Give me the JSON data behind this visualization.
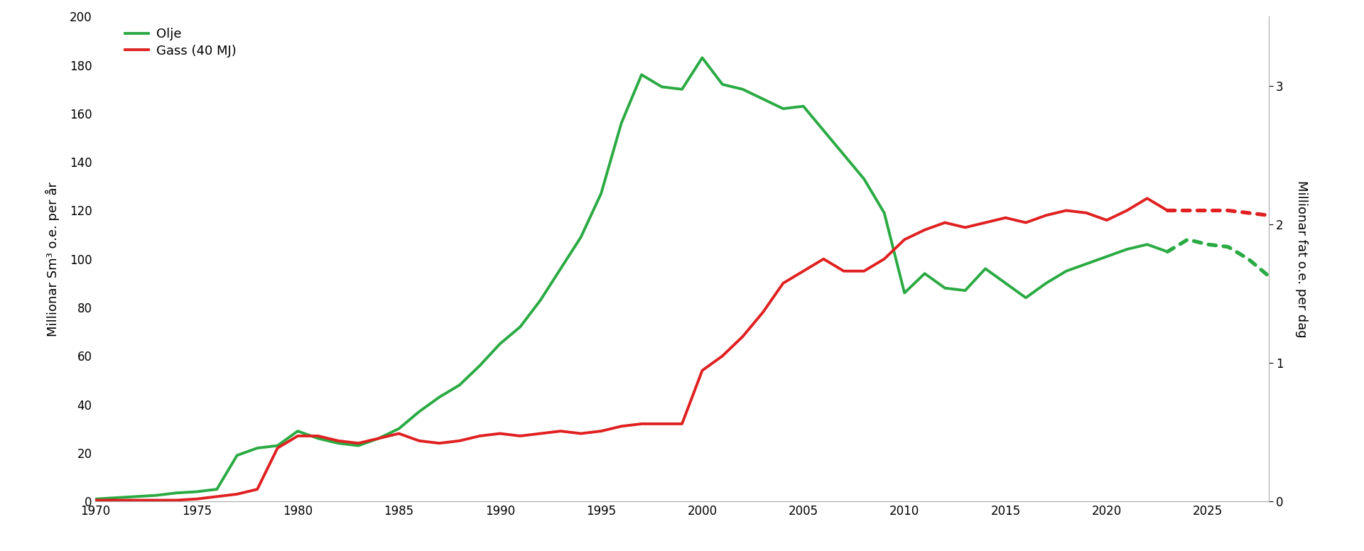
{
  "olje_years": [
    1970,
    1971,
    1972,
    1973,
    1974,
    1975,
    1976,
    1977,
    1978,
    1979,
    1980,
    1981,
    1982,
    1983,
    1984,
    1985,
    1986,
    1987,
    1988,
    1989,
    1990,
    1991,
    1992,
    1993,
    1994,
    1995,
    1996,
    1997,
    1998,
    1999,
    2000,
    2001,
    2002,
    2003,
    2004,
    2005,
    2006,
    2007,
    2008,
    2009,
    2010,
    2011,
    2012,
    2013,
    2014,
    2015,
    2016,
    2017,
    2018,
    2019,
    2020,
    2021,
    2022,
    2023
  ],
  "olje_values": [
    1,
    1.5,
    2,
    2.5,
    3.5,
    4,
    5,
    19,
    22,
    23,
    29,
    26,
    24,
    23,
    26,
    30,
    37,
    43,
    48,
    56,
    65,
    72,
    83,
    96,
    109,
    127,
    156,
    176,
    171,
    170,
    183,
    172,
    170,
    166,
    162,
    163,
    153,
    143,
    133,
    119,
    86,
    94,
    88,
    87,
    96,
    90,
    84,
    90,
    95,
    98,
    101,
    104,
    106,
    103
  ],
  "olje_forecast_years": [
    2023,
    2024,
    2025,
    2026,
    2027,
    2028
  ],
  "olje_forecast_values": [
    103,
    108,
    106,
    105,
    100,
    93
  ],
  "gass_years": [
    1970,
    1971,
    1972,
    1973,
    1974,
    1975,
    1976,
    1977,
    1978,
    1979,
    1980,
    1981,
    1982,
    1983,
    1984,
    1985,
    1986,
    1987,
    1988,
    1989,
    1990,
    1991,
    1992,
    1993,
    1994,
    1995,
    1996,
    1997,
    1998,
    1999,
    2000,
    2001,
    2002,
    2003,
    2004,
    2005,
    2006,
    2007,
    2008,
    2009,
    2010,
    2011,
    2012,
    2013,
    2014,
    2015,
    2016,
    2017,
    2018,
    2019,
    2020,
    2021,
    2022,
    2023
  ],
  "gass_values": [
    0.5,
    0.5,
    0.5,
    0.5,
    0.5,
    1,
    2,
    3,
    5,
    22,
    27,
    27,
    25,
    24,
    26,
    28,
    25,
    24,
    25,
    27,
    28,
    27,
    28,
    29,
    28,
    29,
    31,
    32,
    32,
    32,
    54,
    60,
    68,
    78,
    90,
    95,
    100,
    95,
    95,
    100,
    108,
    112,
    115,
    113,
    115,
    117,
    115,
    118,
    120,
    119,
    116,
    120,
    125,
    120
  ],
  "gass_forecast_years": [
    2023,
    2024,
    2025,
    2026,
    2027,
    2028
  ],
  "gass_forecast_values": [
    120,
    120,
    120,
    120,
    119,
    118
  ],
  "olje_color": "#2aaa42",
  "gass_color": "#e02020",
  "ylabel_left": "Millionar Sm³ o.e. per år",
  "ylabel_right": "Millionar fat o.e. per dag",
  "ylim_left": [
    0,
    200
  ],
  "ylim_right": [
    0,
    3.5
  ],
  "xlim": [
    1970,
    2028
  ],
  "legend_olje": "Olje",
  "legend_gass": "Gass (40 MJ)",
  "xticks": [
    1970,
    1975,
    1980,
    1985,
    1990,
    1995,
    2000,
    2005,
    2010,
    2015,
    2020,
    2025
  ],
  "yticks_left": [
    0,
    20,
    40,
    60,
    80,
    100,
    120,
    140,
    160,
    180,
    200
  ],
  "yticks_right": [
    0,
    1,
    2,
    3
  ],
  "line_width": 2.8,
  "background_color": "#ffffff"
}
